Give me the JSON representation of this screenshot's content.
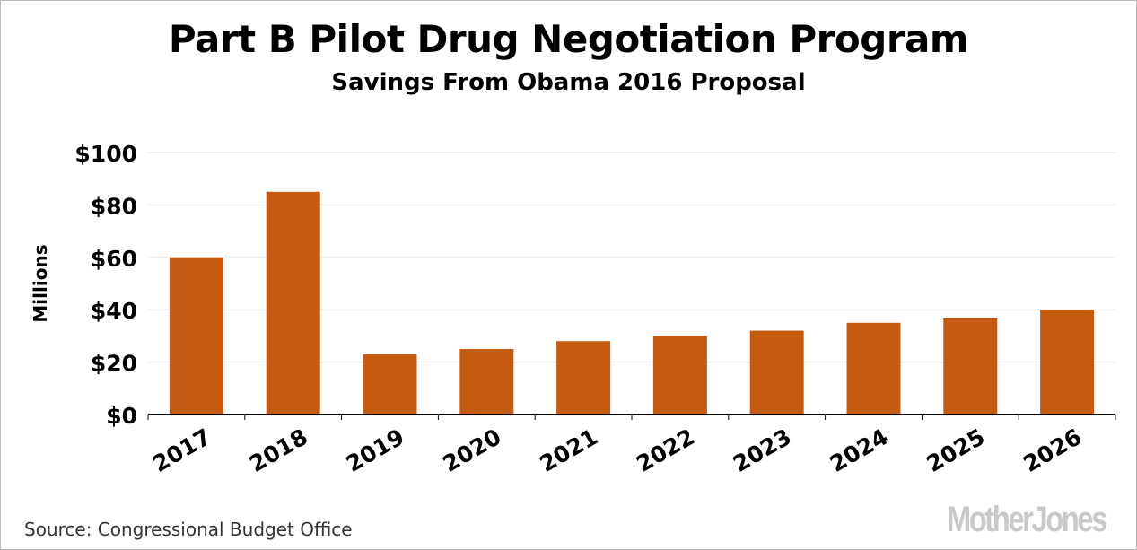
{
  "header": {
    "title": "Part B Pilot Drug Negotiation Program",
    "subtitle": "Savings From Obama 2016 Proposal"
  },
  "footer": {
    "source": "Source: Congressional Budget Office",
    "logo_text": "MotherJones"
  },
  "colors": {
    "bar": "#c55a11",
    "grid": "#e6e6e6",
    "axis": "#000000"
  },
  "chart_data": {
    "type": "bar",
    "title": "Part B Pilot Drug Negotiation Program",
    "subtitle": "Savings From Obama 2016 Proposal",
    "xlabel": "",
    "ylabel": "Millions",
    "categories": [
      "2017",
      "2018",
      "2019",
      "2020",
      "2021",
      "2022",
      "2023",
      "2024",
      "2025",
      "2026"
    ],
    "values": [
      60,
      85,
      23,
      25,
      28,
      30,
      32,
      35,
      37,
      40
    ],
    "ylim": [
      0,
      100
    ],
    "yticks": [
      0,
      20,
      40,
      60,
      80,
      100
    ],
    "ytick_labels": [
      "$0",
      "$20",
      "$40",
      "$60",
      "$80",
      "$100"
    ],
    "grid": true,
    "legend": "none"
  }
}
